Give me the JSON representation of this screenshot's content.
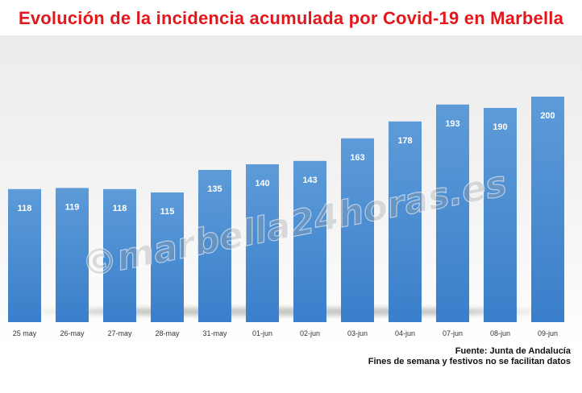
{
  "title": "Evolución de la incidencia acumulada por Covid-19 en Marbella",
  "footer": {
    "source": "Fuente: Junta de Andalucía",
    "note": "Fines de semana y festivos no se facilitan datos"
  },
  "watermark": "©marbella24horas.es",
  "colors": {
    "title": "#e3161b",
    "bar_top": "#5d9bd8",
    "bar_bottom": "#3a7fcb",
    "data_label": "#ffffff",
    "tick_label": "#333333"
  },
  "chart_data": {
    "type": "bar",
    "title": "Evolución de la incidencia acumulada por Covid-19 en Marbella",
    "xlabel": "",
    "ylabel": "",
    "categories": [
      "25 may",
      "26-may",
      "27-may",
      "28-may",
      "31-may",
      "01-jun",
      "02-jun",
      "03-jun",
      "04-jun",
      "07-jun",
      "08-jun",
      "09-jun"
    ],
    "values": [
      118,
      119,
      118,
      115,
      135,
      140,
      143,
      163,
      178,
      193,
      190,
      200
    ],
    "ylim": [
      0,
      200
    ],
    "grid": false,
    "legend": "none",
    "data_labels": true
  }
}
